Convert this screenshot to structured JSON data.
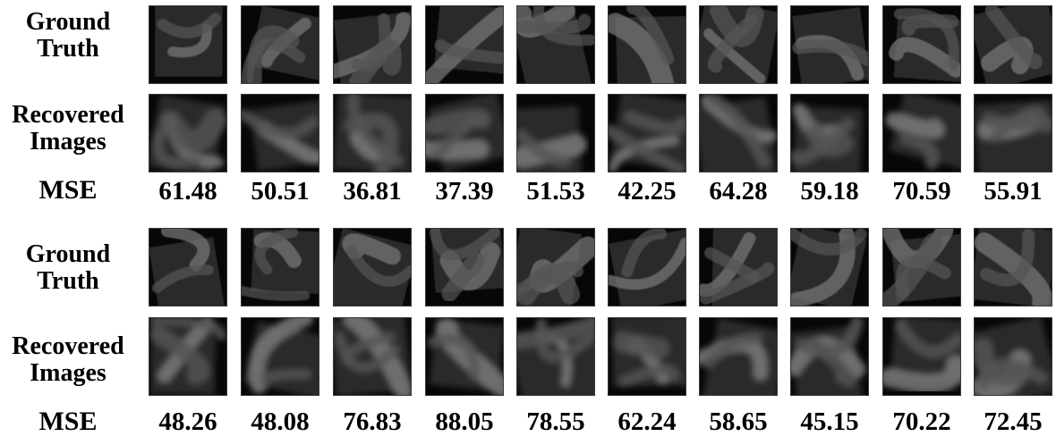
{
  "groups": [
    {
      "gt_label": [
        "Ground",
        "Truth"
      ],
      "rec_label": [
        "Recovered",
        "Images"
      ],
      "mse_label": "MSE",
      "mse": [
        "61.48",
        "50.51",
        "36.81",
        "37.39",
        "51.53",
        "42.25",
        "64.28",
        "59.18",
        "70.59",
        "55.91"
      ]
    },
    {
      "gt_label": [
        "Ground",
        "Truth"
      ],
      "rec_label": [
        "Recovered",
        "Images"
      ],
      "mse_label": "MSE",
      "mse": [
        "48.26",
        "48.08",
        "76.83",
        "88.05",
        "78.55",
        "62.24",
        "58.65",
        "45.15",
        "70.22",
        "72.45"
      ]
    }
  ]
}
